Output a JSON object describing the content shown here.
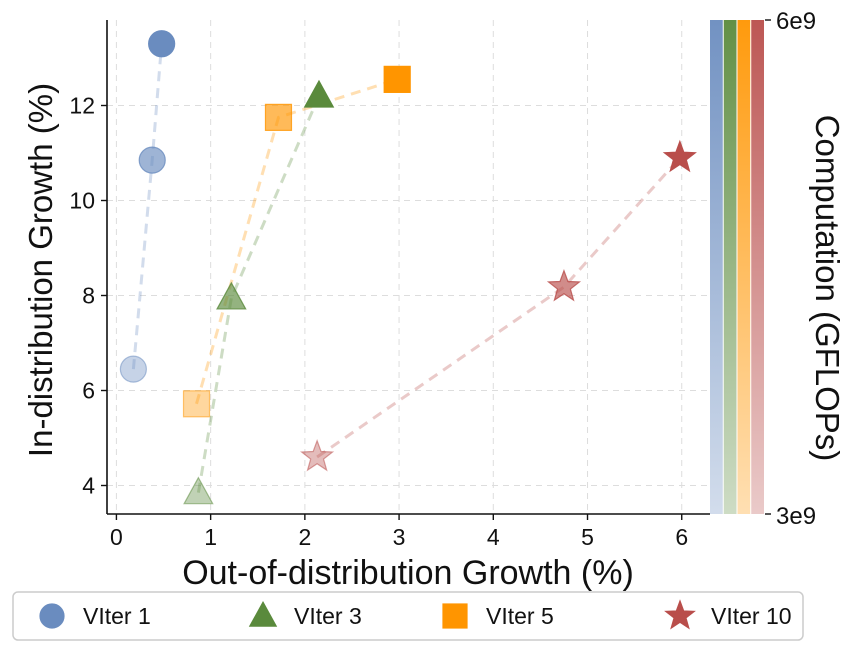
{
  "chart_data": {
    "type": "scatter",
    "title": "",
    "xlabel": "Out-of-distribution Growth (%)",
    "ylabel": "In-distribution Growth (%)",
    "xlim": [
      -0.1,
      6.3
    ],
    "ylim": [
      3.4,
      13.8
    ],
    "xticks": [
      0,
      1,
      2,
      3,
      4,
      5,
      6
    ],
    "yticks": [
      4,
      6,
      8,
      10,
      12
    ],
    "grid": true,
    "legend": "bottom",
    "series": [
      {
        "name": "VIter 1",
        "marker": "circle",
        "color": "#6a8cbf",
        "x": [
          0.18,
          0.38,
          0.48
        ],
        "y": [
          6.45,
          10.85,
          13.3
        ]
      },
      {
        "name": "VIter 3",
        "marker": "triangle",
        "color": "#5a8a3c",
        "x": [
          0.87,
          1.22,
          2.15
        ],
        "y": [
          3.85,
          7.95,
          12.2
        ]
      },
      {
        "name": "VIter 5",
        "marker": "square",
        "color": "#ff9500",
        "x": [
          0.85,
          1.72,
          2.98
        ],
        "y": [
          5.72,
          11.75,
          12.55
        ]
      },
      {
        "name": "VIter 10",
        "marker": "star",
        "color": "#b94e4b",
        "x": [
          2.13,
          4.75,
          5.98
        ],
        "y": [
          4.6,
          8.18,
          10.9
        ]
      }
    ],
    "colorbar": {
      "label": "Computation (GFLOPs)",
      "min_label": "3e9",
      "max_label": "6e9"
    }
  }
}
